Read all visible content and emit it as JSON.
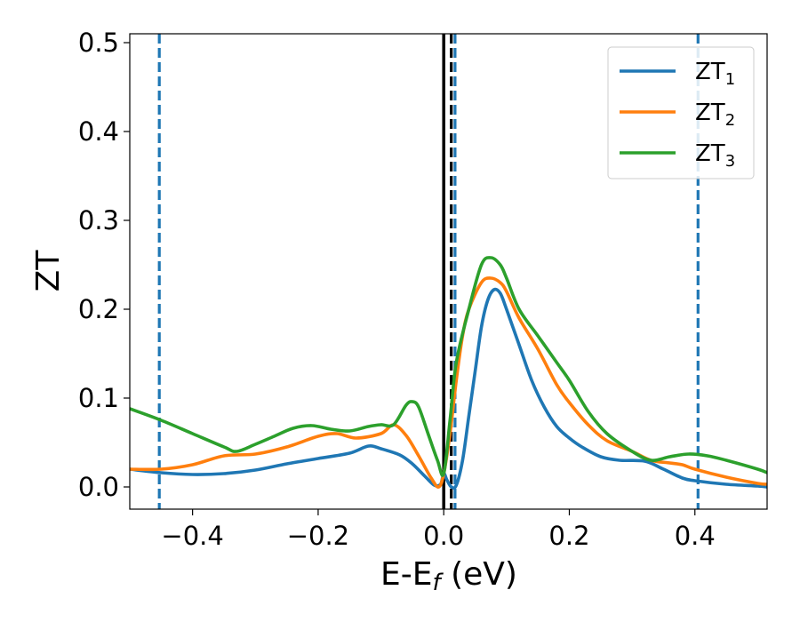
{
  "chart_data": {
    "type": "line",
    "xlabel_main": "E-E",
    "xlabel_sub": "f",
    "xlabel_unit": " (eV)",
    "ylabel": "ZT",
    "xlim": [
      -0.5,
      0.515
    ],
    "ylim": [
      -0.025,
      0.51
    ],
    "xticks": [
      -0.4,
      -0.2,
      0.0,
      0.2,
      0.4
    ],
    "xtick_labels": [
      "−0.4",
      "−0.2",
      "0.0",
      "0.2",
      "0.4"
    ],
    "yticks": [
      0.0,
      0.1,
      0.2,
      0.3,
      0.4,
      0.5
    ],
    "ytick_labels": [
      "0.0",
      "0.1",
      "0.2",
      "0.3",
      "0.4",
      "0.5"
    ],
    "grid": false,
    "legend_position": "top-right",
    "vlines": [
      {
        "x": -0.453,
        "style": "dashed",
        "color": "#1f77b4"
      },
      {
        "x": 0.0,
        "style": "solid",
        "color": "#000000"
      },
      {
        "x": 0.012,
        "style": "dashed",
        "color": "#000000"
      },
      {
        "x": 0.018,
        "style": "dashed",
        "color": "#1f77b4"
      },
      {
        "x": 0.405,
        "style": "dashed",
        "color": "#1f77b4"
      }
    ],
    "series": [
      {
        "name": "ZT",
        "sub": "1",
        "color": "#1f77b4",
        "points": [
          [
            -0.5,
            0.02
          ],
          [
            -0.45,
            0.016
          ],
          [
            -0.4,
            0.014
          ],
          [
            -0.35,
            0.015
          ],
          [
            -0.3,
            0.019
          ],
          [
            -0.25,
            0.026
          ],
          [
            -0.2,
            0.032
          ],
          [
            -0.15,
            0.038
          ],
          [
            -0.12,
            0.046
          ],
          [
            -0.1,
            0.043
          ],
          [
            -0.07,
            0.036
          ],
          [
            -0.05,
            0.026
          ],
          [
            -0.03,
            0.012
          ],
          [
            -0.015,
            0.002
          ],
          [
            -0.005,
            0.003
          ],
          [
            0.0,
            0.015
          ],
          [
            0.005,
            0.008
          ],
          [
            0.012,
            0.0
          ],
          [
            0.02,
            0.002
          ],
          [
            0.03,
            0.03
          ],
          [
            0.04,
            0.08
          ],
          [
            0.05,
            0.13
          ],
          [
            0.06,
            0.18
          ],
          [
            0.07,
            0.21
          ],
          [
            0.08,
            0.222
          ],
          [
            0.09,
            0.218
          ],
          [
            0.1,
            0.2
          ],
          [
            0.12,
            0.16
          ],
          [
            0.14,
            0.12
          ],
          [
            0.16,
            0.09
          ],
          [
            0.18,
            0.068
          ],
          [
            0.2,
            0.055
          ],
          [
            0.22,
            0.045
          ],
          [
            0.25,
            0.034
          ],
          [
            0.28,
            0.03
          ],
          [
            0.32,
            0.029
          ],
          [
            0.35,
            0.02
          ],
          [
            0.38,
            0.01
          ],
          [
            0.4,
            0.007
          ],
          [
            0.45,
            0.003
          ],
          [
            0.5,
            0.001
          ],
          [
            0.515,
            0.0
          ]
        ]
      },
      {
        "name": "ZT",
        "sub": "2",
        "color": "#ff7f0e",
        "points": [
          [
            -0.5,
            0.02
          ],
          [
            -0.45,
            0.02
          ],
          [
            -0.4,
            0.025
          ],
          [
            -0.35,
            0.035
          ],
          [
            -0.3,
            0.037
          ],
          [
            -0.25,
            0.045
          ],
          [
            -0.2,
            0.057
          ],
          [
            -0.17,
            0.06
          ],
          [
            -0.14,
            0.055
          ],
          [
            -0.1,
            0.06
          ],
          [
            -0.08,
            0.07
          ],
          [
            -0.06,
            0.058
          ],
          [
            -0.04,
            0.035
          ],
          [
            -0.02,
            0.01
          ],
          [
            -0.008,
            0.0
          ],
          [
            0.0,
            0.015
          ],
          [
            0.01,
            0.06
          ],
          [
            0.02,
            0.12
          ],
          [
            0.03,
            0.17
          ],
          [
            0.04,
            0.2
          ],
          [
            0.06,
            0.23
          ],
          [
            0.075,
            0.235
          ],
          [
            0.09,
            0.23
          ],
          [
            0.1,
            0.22
          ],
          [
            0.12,
            0.19
          ],
          [
            0.15,
            0.155
          ],
          [
            0.18,
            0.115
          ],
          [
            0.2,
            0.095
          ],
          [
            0.23,
            0.07
          ],
          [
            0.26,
            0.052
          ],
          [
            0.3,
            0.04
          ],
          [
            0.33,
            0.03
          ],
          [
            0.36,
            0.027
          ],
          [
            0.38,
            0.025
          ],
          [
            0.4,
            0.02
          ],
          [
            0.45,
            0.011
          ],
          [
            0.5,
            0.004
          ],
          [
            0.515,
            0.003
          ]
        ]
      },
      {
        "name": "ZT",
        "sub": "3",
        "color": "#2ca02c",
        "points": [
          [
            -0.5,
            0.088
          ],
          [
            -0.45,
            0.075
          ],
          [
            -0.4,
            0.06
          ],
          [
            -0.35,
            0.045
          ],
          [
            -0.33,
            0.04
          ],
          [
            -0.3,
            0.048
          ],
          [
            -0.27,
            0.057
          ],
          [
            -0.24,
            0.066
          ],
          [
            -0.21,
            0.069
          ],
          [
            -0.18,
            0.065
          ],
          [
            -0.15,
            0.063
          ],
          [
            -0.12,
            0.068
          ],
          [
            -0.1,
            0.07
          ],
          [
            -0.08,
            0.07
          ],
          [
            -0.06,
            0.092
          ],
          [
            -0.05,
            0.096
          ],
          [
            -0.04,
            0.09
          ],
          [
            -0.025,
            0.06
          ],
          [
            -0.01,
            0.03
          ],
          [
            0.0,
            0.015
          ],
          [
            0.01,
            0.075
          ],
          [
            0.02,
            0.14
          ],
          [
            0.04,
            0.2
          ],
          [
            0.06,
            0.25
          ],
          [
            0.075,
            0.258
          ],
          [
            0.09,
            0.25
          ],
          [
            0.1,
            0.235
          ],
          [
            0.12,
            0.2
          ],
          [
            0.15,
            0.17
          ],
          [
            0.18,
            0.14
          ],
          [
            0.2,
            0.12
          ],
          [
            0.23,
            0.085
          ],
          [
            0.26,
            0.06
          ],
          [
            0.3,
            0.04
          ],
          [
            0.33,
            0.03
          ],
          [
            0.36,
            0.034
          ],
          [
            0.39,
            0.037
          ],
          [
            0.42,
            0.035
          ],
          [
            0.45,
            0.03
          ],
          [
            0.5,
            0.02
          ],
          [
            0.515,
            0.016
          ]
        ]
      }
    ]
  }
}
